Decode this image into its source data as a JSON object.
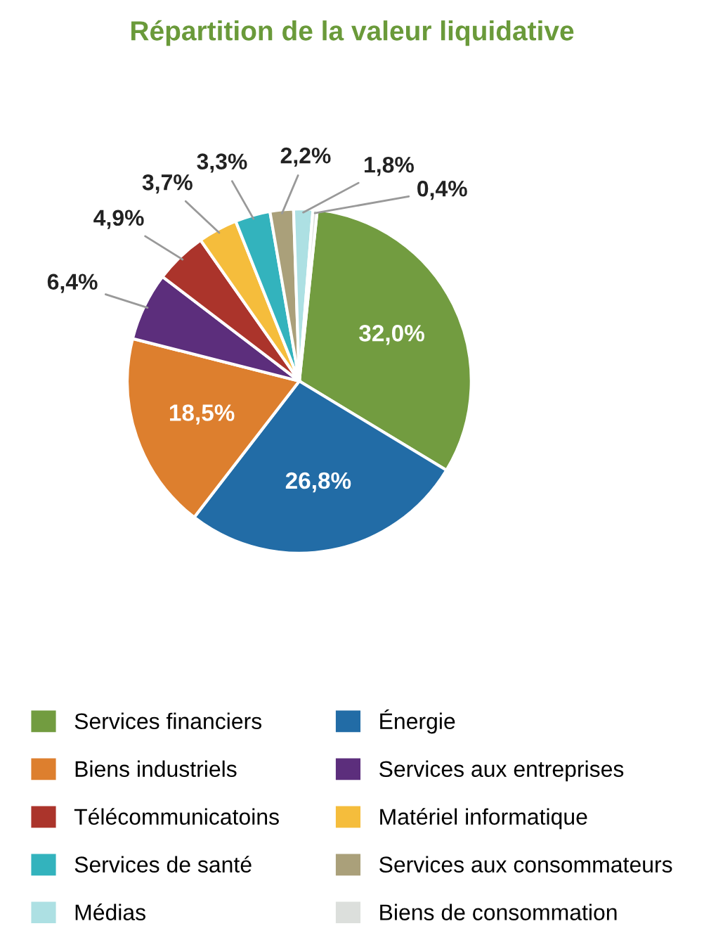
{
  "chart_data": {
    "type": "pie",
    "title": "Répartition de la valeur liquidative",
    "categories": [
      "Services financiers",
      "Énergie",
      "Biens industriels",
      "Services aux entreprises",
      "Télécommunicatoins",
      "Matériel informatique",
      "Services de santé",
      "Services aux consommateurs",
      "Médias",
      "Biens de consommation"
    ],
    "values": [
      32.0,
      26.8,
      18.5,
      6.4,
      4.9,
      3.7,
      3.3,
      2.2,
      1.8,
      0.4
    ],
    "value_labels": [
      "32,0%",
      "26,8%",
      "18,5%",
      "6,4%",
      "4,9%",
      "3,7%",
      "3,3%",
      "2,2%",
      "1,8%",
      "0,4%"
    ],
    "colors": [
      "#729c40",
      "#226ca6",
      "#dd7f2e",
      "#5c2e7c",
      "#ab342b",
      "#f5bd3c",
      "#33b3bd",
      "#aaa07a",
      "#ade0e3",
      "#dcdfdc"
    ],
    "legend": "bottom"
  }
}
